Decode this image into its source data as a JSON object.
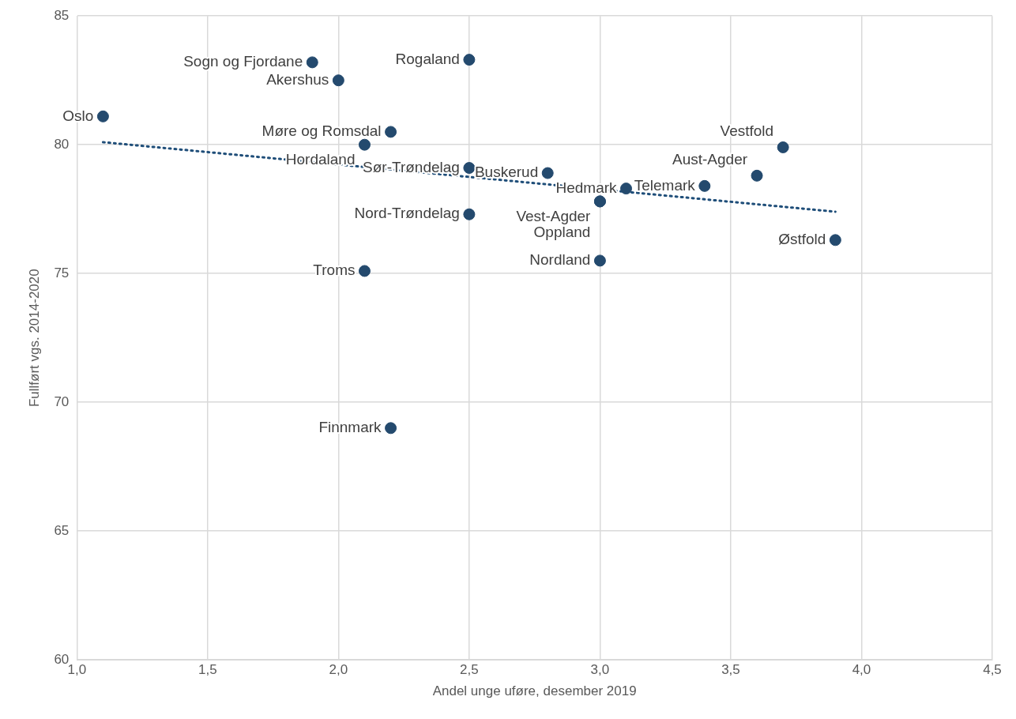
{
  "chart_data": {
    "type": "scatter",
    "xlabel": "Andel unge uføre, desember 2019",
    "ylabel": "Fullført vgs. 2014-2020",
    "xlim": [
      1.0,
      4.5
    ],
    "xticks": [
      {
        "value": 1.0,
        "label": "1,0"
      },
      {
        "value": 1.5,
        "label": "1,5"
      },
      {
        "value": 2.0,
        "label": "2,0"
      },
      {
        "value": 2.5,
        "label": "2,5"
      },
      {
        "value": 3.0,
        "label": "3,0"
      },
      {
        "value": 3.5,
        "label": "3,5"
      },
      {
        "value": 4.0,
        "label": "4,0"
      },
      {
        "value": 4.5,
        "label": "4,5"
      }
    ],
    "ylim": [
      60,
      85
    ],
    "yticks": [
      60,
      65,
      70,
      75,
      80,
      85
    ],
    "grid": true,
    "legend": false,
    "marker": "circle",
    "series": [
      {
        "type": "scatter",
        "color": "#244a6e",
        "x": [
          1.1,
          1.9,
          2.0,
          2.5,
          2.2,
          2.1,
          2.5,
          2.8,
          3.1,
          3.4,
          3.6,
          3.7,
          3.0,
          3.0,
          2.5,
          3.0,
          2.1,
          2.2,
          3.9
        ],
        "values": [
          81.1,
          83.2,
          82.5,
          83.3,
          80.5,
          80.0,
          79.1,
          78.9,
          78.3,
          78.4,
          78.8,
          79.9,
          77.8,
          77.8,
          77.3,
          75.5,
          75.1,
          69.0,
          76.3
        ]
      },
      {
        "type": "line",
        "color": "#1f4e79",
        "line_style": "dotted",
        "marker": "none",
        "x": [
          1.1,
          3.9
        ],
        "values": [
          80.1,
          77.4
        ]
      }
    ],
    "annotations": [
      {
        "text": "Oslo",
        "x": 1.1,
        "y": 81.1
      },
      {
        "text": "Sogn og Fjordane",
        "x": 1.9,
        "y": 83.2
      },
      {
        "text": "Akershus",
        "x": 2.0,
        "y": 82.5
      },
      {
        "text": "Rogaland",
        "x": 2.5,
        "y": 83.3
      },
      {
        "text": "Møre og Romsdal",
        "x": 2.2,
        "y": 80.5
      },
      {
        "text": "Hordaland",
        "x": 2.1,
        "y": 80.0
      },
      {
        "text": "Sør-Trøndelag",
        "x": 2.5,
        "y": 79.1
      },
      {
        "text": "Buskerud",
        "x": 2.8,
        "y": 78.9
      },
      {
        "text": "Hedmark",
        "x": 3.1,
        "y": 78.3
      },
      {
        "text": "Telemark",
        "x": 3.4,
        "y": 78.4
      },
      {
        "text": "Aust-Agder",
        "x": 3.6,
        "y": 78.8
      },
      {
        "text": "Vestfold",
        "x": 3.7,
        "y": 79.9
      },
      {
        "text": "Vest-Agder",
        "x": 3.0,
        "y": 77.8
      },
      {
        "text": "Oppland",
        "x": 3.0,
        "y": 77.8
      },
      {
        "text": "Nord-Trøndelag",
        "x": 2.5,
        "y": 77.3
      },
      {
        "text": "Nordland",
        "x": 3.0,
        "y": 75.5
      },
      {
        "text": "Troms",
        "x": 2.1,
        "y": 75.1
      },
      {
        "text": "Finnmark",
        "x": 2.2,
        "y": 69.0
      },
      {
        "text": "Østfold",
        "x": 3.9,
        "y": 76.3
      }
    ]
  }
}
